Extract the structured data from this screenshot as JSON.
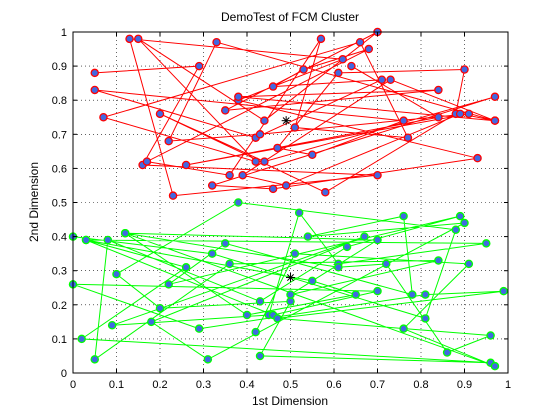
{
  "chart_data": {
    "type": "scatter",
    "title": "DemoTest of FCM Cluster",
    "xlabel": "1st Dimension",
    "ylabel": "2nd Dimension",
    "xlim": [
      0,
      1
    ],
    "ylim": [
      0,
      1
    ],
    "x_ticks": [
      "0",
      "0.1",
      "0.2",
      "0.3",
      "0.4",
      "0.5",
      "0.6",
      "0.7",
      "0.8",
      "0.9",
      "1"
    ],
    "y_ticks": [
      "0",
      "0.1",
      "0.2",
      "0.3",
      "0.4",
      "0.5",
      "0.6",
      "0.7",
      "0.8",
      "0.9",
      "1"
    ],
    "grid": true,
    "legend": "none",
    "series": [
      {
        "color": "#ff0000",
        "marker_edge": "#ff0000",
        "marker_fill": "#4169e1",
        "points": [
          [
            0.05,
            0.88
          ],
          [
            0.29,
            0.9
          ],
          [
            0.16,
            0.61
          ],
          [
            0.7,
            0.58
          ],
          [
            0.23,
            0.52
          ],
          [
            0.13,
            0.98
          ],
          [
            0.62,
            0.92
          ],
          [
            0.38,
            0.8
          ],
          [
            0.93,
            0.63
          ],
          [
            0.46,
            0.54
          ],
          [
            0.32,
            0.55
          ],
          [
            0.97,
            0.81
          ],
          [
            0.44,
            0.62
          ],
          [
            0.2,
            0.76
          ],
          [
            0.58,
            0.53
          ],
          [
            0.88,
            0.76
          ],
          [
            0.9,
            0.89
          ],
          [
            0.61,
            0.88
          ],
          [
            0.47,
            0.66
          ],
          [
            0.55,
            0.64
          ],
          [
            0.76,
            0.74
          ],
          [
            0.05,
            0.83
          ],
          [
            0.42,
            0.69
          ],
          [
            0.71,
            0.86
          ],
          [
            0.46,
            0.84
          ],
          [
            0.53,
            0.89
          ],
          [
            0.68,
            0.95
          ],
          [
            0.17,
            0.62
          ],
          [
            0.36,
            0.58
          ],
          [
            0.57,
            0.98
          ],
          [
            0.51,
            0.72
          ],
          [
            0.77,
            0.69
          ],
          [
            0.66,
            0.97
          ],
          [
            0.07,
            0.75
          ],
          [
            0.42,
            0.62
          ],
          [
            0.15,
            0.98
          ],
          [
            0.44,
            0.74
          ],
          [
            0.7,
            1.0
          ],
          [
            0.35,
            0.77
          ],
          [
            0.84,
            0.83
          ],
          [
            0.38,
            0.81
          ],
          [
            0.97,
            0.74
          ],
          [
            0.89,
            0.76
          ],
          [
            0.49,
            0.55
          ],
          [
            0.39,
            0.58
          ],
          [
            0.73,
            0.86
          ],
          [
            0.97,
            0.74
          ],
          [
            0.33,
            0.97
          ],
          [
            0.22,
            0.68
          ],
          [
            0.43,
            0.7
          ],
          [
            0.91,
            0.76
          ],
          [
            0.26,
            0.61
          ],
          [
            0.84,
            0.75
          ],
          [
            0.64,
            0.9
          ]
        ],
        "center": [
          0.49,
          0.74
        ]
      },
      {
        "color": "#00ff00",
        "marker_edge": "#00ff00",
        "marker_fill": "#4169e1",
        "points": [
          [
            0.0,
            0.4
          ],
          [
            0.32,
            0.35
          ],
          [
            0.81,
            0.16
          ],
          [
            0.88,
            0.42
          ],
          [
            0.38,
            0.5
          ],
          [
            0.1,
            0.29
          ],
          [
            0.2,
            0.19
          ],
          [
            0.5,
            0.21
          ],
          [
            0.43,
            0.05
          ],
          [
            0.96,
            0.03
          ],
          [
            0.02,
            0.1
          ],
          [
            0.26,
            0.31
          ],
          [
            0.03,
            0.39
          ],
          [
            0.95,
            0.38
          ],
          [
            0.61,
            0.32
          ],
          [
            0.52,
            0.47
          ],
          [
            0.45,
            0.17
          ],
          [
            0.09,
            0.14
          ],
          [
            0.67,
            0.4
          ],
          [
            0.18,
            0.15
          ],
          [
            0.31,
            0.04
          ],
          [
            0.9,
            0.44
          ],
          [
            0.54,
            0.4
          ],
          [
            0.76,
            0.46
          ],
          [
            0.78,
            0.23
          ],
          [
            0.35,
            0.38
          ],
          [
            0.22,
            0.26
          ],
          [
            0.89,
            0.46
          ],
          [
            0.63,
            0.37
          ],
          [
            0.43,
            0.21
          ],
          [
            0.08,
            0.39
          ],
          [
            0.05,
            0.04
          ],
          [
            0.36,
            0.32
          ],
          [
            0.84,
            0.33
          ],
          [
            0.5,
            0.23
          ],
          [
            0.7,
            0.39
          ],
          [
            0.12,
            0.41
          ],
          [
            0.4,
            0.17
          ],
          [
            0.65,
            0.23
          ],
          [
            0.55,
            0.27
          ],
          [
            0.03,
            0.39
          ],
          [
            0.46,
            0.17
          ],
          [
            0.7,
            0.24
          ],
          [
            0.0,
            0.26
          ],
          [
            0.29,
            0.13
          ],
          [
            0.81,
            0.23
          ],
          [
            0.99,
            0.24
          ],
          [
            0.47,
            0.16
          ],
          [
            0.96,
            0.11
          ],
          [
            0.86,
            0.06
          ],
          [
            0.72,
            0.32
          ],
          [
            0.61,
            0.31
          ],
          [
            0.12,
            0.41
          ],
          [
            0.97,
            0.02
          ],
          [
            0.76,
            0.13
          ],
          [
            0.91,
            0.32
          ],
          [
            0.51,
            0.35
          ],
          [
            0.42,
            0.12
          ]
        ],
        "center": [
          0.5,
          0.28
        ]
      }
    ]
  }
}
